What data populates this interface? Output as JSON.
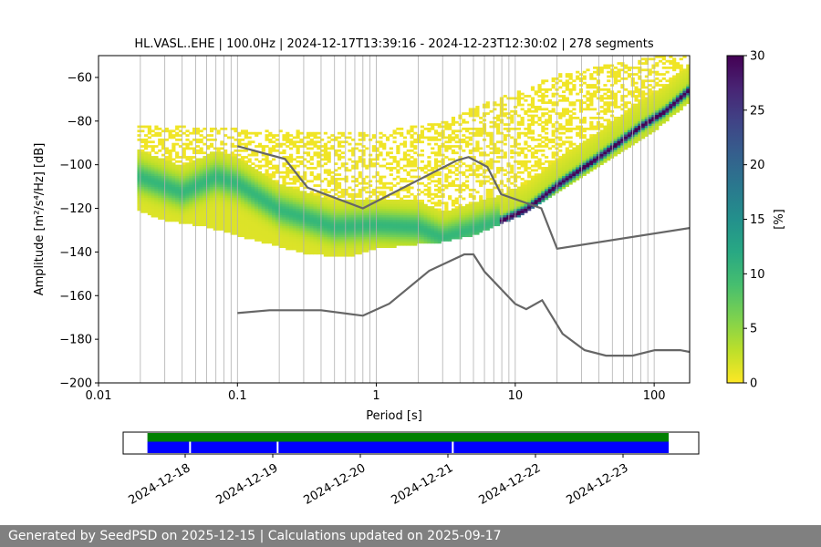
{
  "chart_data": [
    {
      "type": "heatmap",
      "title": "HL.VASL..EHE | 100.0Hz | 2024-12-17T13:39:16 - 2024-12-23T12:30:02 | 278 segments",
      "xlabel": "Period [s]",
      "ylabel": "Amplitude [m²/s⁴/Hz] [dB]",
      "x_scale": "log",
      "xlim": [
        0.01,
        180
      ],
      "ylim": [
        -200,
        -50
      ],
      "x_ticks": [
        0.01,
        0.1,
        1,
        10,
        100
      ],
      "x_tick_labels": [
        "0.01",
        "0.1",
        "1",
        "10",
        "100"
      ],
      "y_ticks": [
        -60,
        -80,
        -100,
        -120,
        -140,
        -160,
        -180,
        -200
      ],
      "y_tick_labels": [
        "−60",
        "−80",
        "−100",
        "−120",
        "−140",
        "−160",
        "−180",
        "−200"
      ],
      "grid": "vertical log grid lines",
      "colormap": "viridis_r",
      "colorbar": {
        "label": "[%]",
        "range": [
          0,
          30
        ],
        "ticks": [
          0,
          5,
          10,
          15,
          20,
          25,
          30
        ]
      },
      "series": [
        {
          "name": "",
          "kind": "noise model high",
          "color": "#666666",
          "points": [
            [
              0.1,
              -91.5
            ],
            [
              0.22,
              -97.4
            ],
            [
              0.32,
              -110.5
            ],
            [
              0.8,
              -120.0
            ],
            [
              3.8,
              -98.0
            ],
            [
              4.6,
              -96.5
            ],
            [
              6.3,
              -101.0
            ],
            [
              7.9,
              -113.5
            ],
            [
              15.4,
              -120.0
            ],
            [
              20.0,
              -138.5
            ],
            [
              180,
              -129.0
            ]
          ]
        },
        {
          "name": "",
          "kind": "noise model low",
          "color": "#666666",
          "points": [
            [
              0.1,
              -168.0
            ],
            [
              0.17,
              -166.7
            ],
            [
              0.4,
              -166.7
            ],
            [
              0.8,
              -169.2
            ],
            [
              1.24,
              -163.7
            ],
            [
              2.4,
              -148.6
            ],
            [
              4.3,
              -141.1
            ],
            [
              5.0,
              -141.1
            ],
            [
              6.0,
              -149.0
            ],
            [
              10.0,
              -163.8
            ],
            [
              12.0,
              -166.2
            ],
            [
              15.6,
              -162.1
            ],
            [
              21.9,
              -177.5
            ],
            [
              31.6,
              -185.0
            ],
            [
              45.0,
              -187.5
            ],
            [
              70.0,
              -187.5
            ],
            [
              101.0,
              -185.0
            ],
            [
              154.0,
              -185.0
            ],
            [
              180.0,
              -185.8
            ]
          ]
        },
        {
          "name": "",
          "kind": "PSD mode",
          "color": "#3aa67a",
          "points": [
            [
              0.02,
              -106
            ],
            [
              0.04,
              -113
            ],
            [
              0.07,
              -106
            ],
            [
              0.1,
              -109
            ],
            [
              0.2,
              -121
            ],
            [
              0.5,
              -129
            ],
            [
              1,
              -128
            ],
            [
              2,
              -129
            ],
            [
              3,
              -134
            ],
            [
              5,
              -130
            ],
            [
              8,
              -126
            ],
            [
              12,
              -121
            ],
            [
              20,
              -110
            ],
            [
              40,
              -97
            ],
            [
              80,
              -83
            ],
            [
              120,
              -76
            ],
            [
              180,
              -66
            ]
          ]
        },
        {
          "name": "",
          "kind": "PSD upper envelope",
          "color": "#e8e81a",
          "points": [
            [
              0.02,
              -83
            ],
            [
              0.1,
              -85
            ],
            [
              0.3,
              -86
            ],
            [
              1,
              -86
            ],
            [
              3,
              -82
            ],
            [
              5,
              -75
            ],
            [
              10,
              -68
            ],
            [
              20,
              -60
            ],
            [
              40,
              -56
            ],
            [
              100,
              -52
            ],
            [
              180,
              -51
            ]
          ]
        },
        {
          "name": "",
          "kind": "PSD lower envelope",
          "color": "#e8e81a",
          "points": [
            [
              0.02,
              -121
            ],
            [
              0.03,
              -125
            ],
            [
              0.06,
              -128
            ],
            [
              0.1,
              -132
            ],
            [
              0.3,
              -140
            ],
            [
              0.6,
              -142
            ],
            [
              1,
              -138
            ],
            [
              2,
              -136
            ],
            [
              3,
              -135
            ],
            [
              5,
              -132
            ],
            [
              10,
              -124
            ],
            [
              20,
              -112
            ],
            [
              40,
              -100
            ],
            [
              100,
              -84
            ],
            [
              180,
              -71
            ]
          ]
        }
      ]
    },
    {
      "type": "timeline",
      "x_tick_labels": [
        "2024-12-18",
        "2024-12-19",
        "2024-12-20",
        "2024-12-21",
        "2024-12-22",
        "2024-12-23"
      ],
      "x_start": "2024-12-17T13:39:16",
      "x_end": "2024-12-23T12:30:02",
      "colors": {
        "upper": "#008000",
        "lower": "#0000ff"
      },
      "gaps": [
        "2024-12-18T01:20",
        "2024-12-19T01:20",
        "2024-12-21T01:20"
      ]
    }
  ],
  "footer_text": "Generated by SeedPSD on 2025-12-15 | Calculations updated on 2025-09-17"
}
